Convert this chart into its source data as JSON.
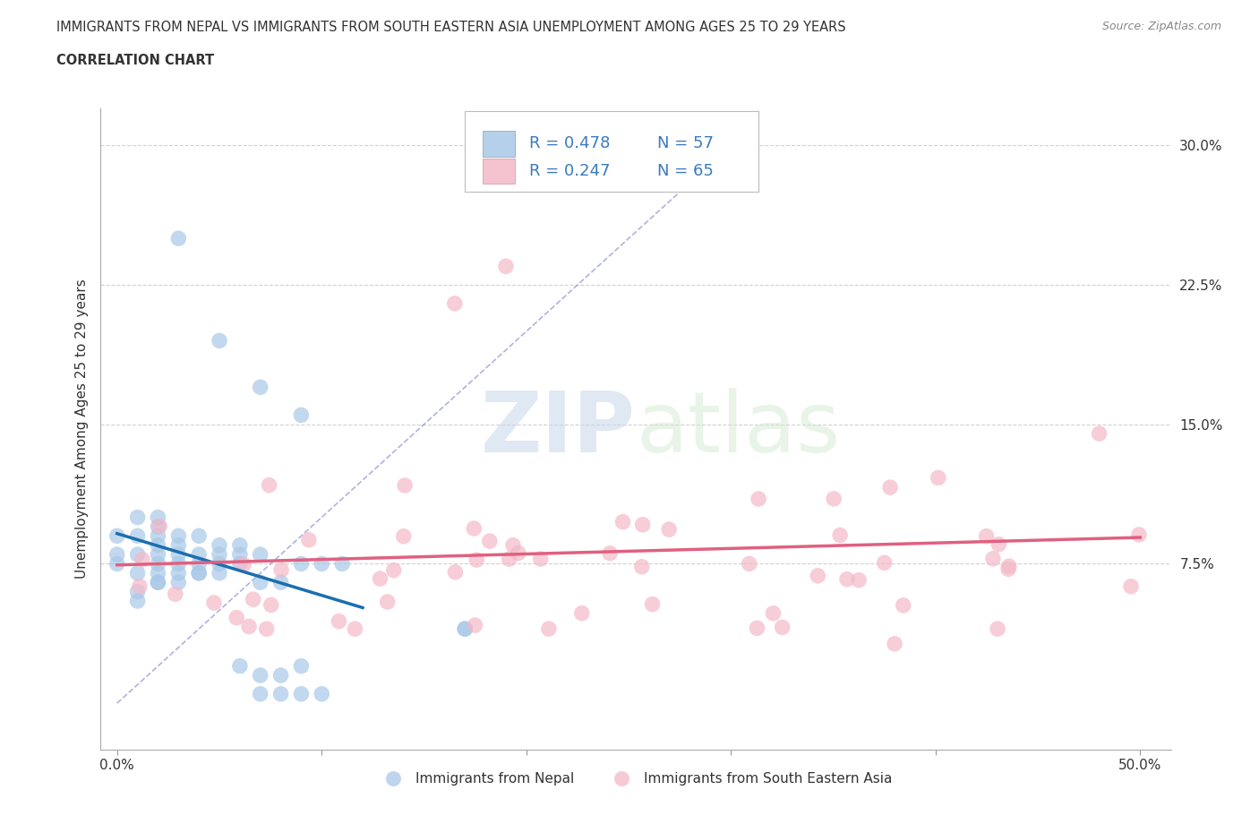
{
  "title_line1": "IMMIGRANTS FROM NEPAL VS IMMIGRANTS FROM SOUTH EASTERN ASIA UNEMPLOYMENT AMONG AGES 25 TO 29 YEARS",
  "title_line2": "CORRELATION CHART",
  "source": "Source: ZipAtlas.com",
  "ylabel": "Unemployment Among Ages 25 to 29 years",
  "nepal_color": "#a8c8e8",
  "sea_color": "#f4b8c8",
  "nepal_R": 0.478,
  "nepal_N": 57,
  "sea_R": 0.247,
  "sea_N": 65,
  "watermark_zip": "ZIP",
  "watermark_atlas": "atlas",
  "grid_color": "#cccccc",
  "nepal_line_color": "#1a6faf",
  "sea_line_color": "#e06080",
  "dashed_line_color": "#aaaacc",
  "text_color": "#333333",
  "blue_label_color": "#3a7bbf",
  "source_color": "#888888"
}
